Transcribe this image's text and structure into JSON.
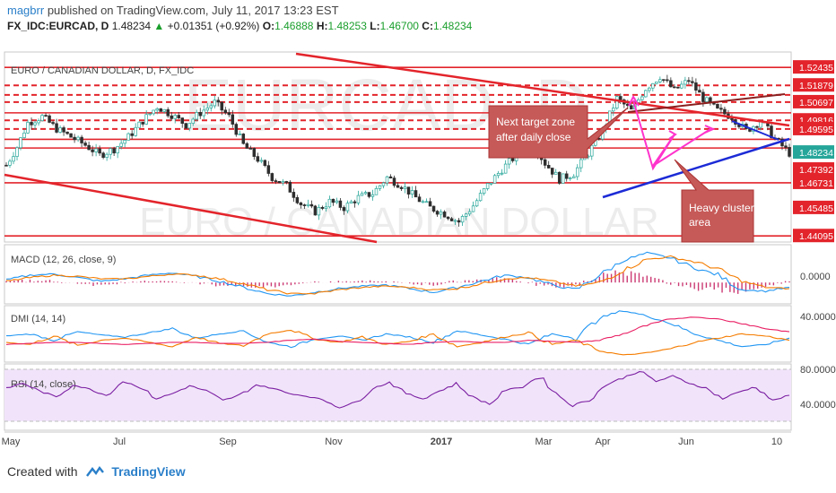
{
  "header": {
    "author": "magbrr",
    "published": "published on TradingView.com, July 11, 2017 13:23 EST",
    "symbol": "FX_IDC:EURCAD, D",
    "last": "1.48234",
    "change": "+0.01351 (+0.92%)",
    "o_label": "O:",
    "o_value": "1.46888",
    "h_label": "H:",
    "h_value": "1.48253",
    "l_label": "L:",
    "l_value": "1.46700",
    "c_label": "C:",
    "c_value": "1.48234"
  },
  "footer": {
    "created_with": "Created with",
    "brand": "TradingView"
  },
  "chart_data": [
    {
      "type": "candlestick",
      "title": "EURO / CANADIAN DOLLAR, D, FX_IDC",
      "watermark_symbol": "EURCAD, D",
      "watermark_name": "EURO / CANADIAN DOLLAR",
      "x_ticks": [
        "May",
        "Jul",
        "Sep",
        "Nov",
        "2017",
        "Mar",
        "Apr",
        "Jun",
        "10"
      ],
      "y_ticks": [
        "1.52435",
        "1.51879",
        "1.50697",
        "1.49816",
        "1.49595",
        "1.47392",
        "1.46731",
        "1.45485",
        "1.44095"
      ],
      "last_price_label": "1.48234",
      "ylim": [
        1.438,
        1.532
      ],
      "close_path": [
        [
          0,
          1.476
        ],
        [
          3,
          1.485
        ],
        [
          6,
          1.497
        ],
        [
          10,
          1.5
        ],
        [
          14,
          1.494
        ],
        [
          18,
          1.49
        ],
        [
          22,
          1.486
        ],
        [
          26,
          1.481
        ],
        [
          30,
          1.484
        ],
        [
          34,
          1.49
        ],
        [
          38,
          1.498
        ],
        [
          42,
          1.505
        ],
        [
          46,
          1.501
        ],
        [
          50,
          1.496
        ],
        [
          54,
          1.502
        ],
        [
          58,
          1.507
        ],
        [
          62,
          1.5
        ],
        [
          66,
          1.486
        ],
        [
          70,
          1.479
        ],
        [
          74,
          1.47
        ],
        [
          78,
          1.466
        ],
        [
          82,
          1.457
        ],
        [
          86,
          1.453
        ],
        [
          90,
          1.458
        ],
        [
          94,
          1.455
        ],
        [
          98,
          1.46
        ],
        [
          102,
          1.462
        ],
        [
          106,
          1.47
        ],
        [
          110,
          1.466
        ],
        [
          114,
          1.46
        ],
        [
          118,
          1.455
        ],
        [
          122,
          1.452
        ],
        [
          126,
          1.448
        ],
        [
          130,
          1.456
        ],
        [
          134,
          1.466
        ],
        [
          138,
          1.474
        ],
        [
          142,
          1.481
        ],
        [
          146,
          1.488
        ],
        [
          150,
          1.477
        ],
        [
          154,
          1.469
        ],
        [
          158,
          1.472
        ],
        [
          162,
          1.482
        ],
        [
          166,
          1.493
        ],
        [
          170,
          1.509
        ],
        [
          174,
          1.503
        ],
        [
          178,
          1.514
        ],
        [
          182,
          1.52
        ],
        [
          186,
          1.513
        ],
        [
          190,
          1.518
        ],
        [
          194,
          1.509
        ],
        [
          198,
          1.503
        ],
        [
          202,
          1.5
        ],
        [
          206,
          1.493
        ],
        [
          210,
          1.498
        ],
        [
          214,
          1.489
        ],
        [
          218,
          1.482
        ]
      ],
      "horizontal_levels": {
        "solid": [
          1.5244,
          1.5019,
          1.4888,
          1.4845,
          1.4673,
          1.441
        ],
        "dashed": [
          1.5155,
          1.5108,
          1.5072,
          1.4982,
          1.4939
        ]
      },
      "annotations": [
        "Next target zone after daily close",
        "Heavy cluster area"
      ],
      "colors": {
        "up": "#26a69a",
        "down": "#2e2e2e",
        "level": "#e3242b",
        "trend_blue": "#1c2bd6",
        "arrow": "#ff33cc",
        "callout": "#c85a5a"
      }
    },
    {
      "type": "line",
      "title": "MACD (12, 26, close, 9)",
      "y_ticks": [
        "0.0000"
      ],
      "series": [
        {
          "name": "MACD",
          "values": [
            0.002,
            0.006,
            0.007,
            0.004,
            0.001,
            0.003,
            0.006,
            0.008,
            0.005,
            0.001,
            -0.004,
            -0.009,
            -0.011,
            -0.008,
            -0.005,
            -0.003,
            -0.002,
            -0.005,
            -0.008,
            -0.004,
            0.001,
            0.006,
            0.004,
            -0.002,
            -0.006,
            0.006,
            0.018,
            0.024,
            0.02,
            0.012,
            0.006,
            -0.006,
            -0.007,
            -0.004
          ]
        },
        {
          "name": "Signal",
          "values": [
            0.001,
            0.004,
            0.006,
            0.005,
            0.003,
            0.003,
            0.005,
            0.007,
            0.006,
            0.003,
            -0.001,
            -0.006,
            -0.009,
            -0.009,
            -0.006,
            -0.004,
            -0.003,
            -0.004,
            -0.006,
            -0.005,
            -0.001,
            0.003,
            0.004,
            0.001,
            -0.003,
            0.0,
            0.01,
            0.019,
            0.021,
            0.017,
            0.011,
            0.001,
            -0.004,
            -0.005
          ]
        }
      ],
      "colors": {
        "macd": "#2196f3",
        "signal": "#f57c00",
        "hist": "#c2185b"
      }
    },
    {
      "type": "line",
      "title": "DMI (14, 14)",
      "y_ticks": [
        "40.0000"
      ],
      "series": [
        {
          "name": "+DI",
          "values": [
            28,
            30,
            24,
            32,
            29,
            27,
            31,
            35,
            26,
            30,
            33,
            22,
            18,
            25,
            28,
            24,
            30,
            27,
            22,
            33,
            29,
            25,
            20,
            30,
            26,
            45,
            52,
            47,
            40,
            30,
            24,
            18,
            20,
            26
          ]
        },
        {
          "name": "-DI",
          "values": [
            22,
            20,
            28,
            19,
            24,
            26,
            22,
            18,
            27,
            21,
            19,
            30,
            34,
            25,
            22,
            27,
            20,
            23,
            30,
            18,
            22,
            27,
            31,
            20,
            24,
            14,
            10,
            12,
            16,
            22,
            26,
            30,
            28,
            24
          ]
        },
        {
          "name": "ADX",
          "values": [
            20,
            21,
            22,
            22,
            21,
            20,
            21,
            22,
            22,
            21,
            21,
            22,
            24,
            25,
            23,
            22,
            21,
            20,
            22,
            23,
            22,
            22,
            24,
            23,
            22,
            24,
            30,
            38,
            44,
            46,
            44,
            40,
            35,
            32
          ]
        }
      ],
      "colors": {
        "plus": "#2196f3",
        "minus": "#f57c00",
        "adx": "#e91e63"
      }
    },
    {
      "type": "line",
      "title": "RSI (14, close)",
      "y_ticks": [
        "80.0000",
        "40.0000"
      ],
      "series": [
        {
          "name": "RSI",
          "values": [
            58,
            64,
            55,
            48,
            62,
            57,
            50,
            66,
            60,
            46,
            52,
            61,
            55,
            44,
            50,
            62,
            58,
            52,
            49,
            45,
            36,
            42,
            58,
            65,
            52,
            46,
            55,
            63,
            48,
            40,
            56,
            60,
            72,
            52,
            38,
            45,
            62,
            70,
            78,
            66,
            72,
            64,
            58,
            46,
            54,
            60,
            44,
            50
          ]
        }
      ],
      "colors": {
        "rsi": "#7b1fa2",
        "band": "#ead7f7"
      }
    }
  ]
}
